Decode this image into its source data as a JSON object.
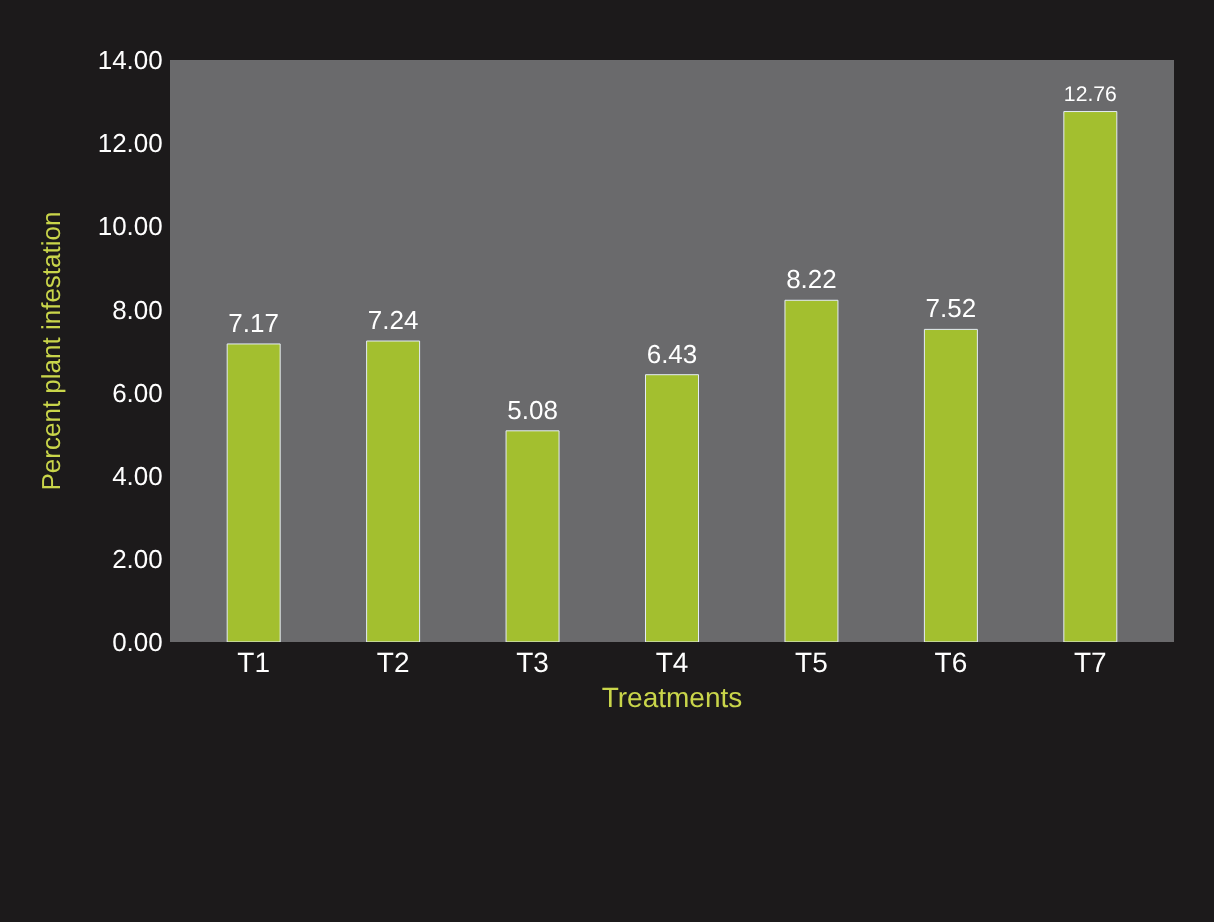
{
  "chart_data": {
    "type": "bar",
    "xlabel": "Treatments",
    "ylabel": "Percent plant infestation",
    "categories": [
      "T1",
      "T2",
      "T3",
      "T4",
      "T5",
      "T6",
      "T7"
    ],
    "values": [
      7.17,
      7.24,
      5.08,
      6.43,
      8.22,
      7.52,
      12.76
    ],
    "color": "#a3bf2f",
    "ylim": [
      0,
      14
    ],
    "yticks": [
      {
        "value": 0,
        "label": "0.00"
      },
      {
        "value": 2,
        "label": "2.00"
      },
      {
        "value": 4,
        "label": "4.00"
      },
      {
        "value": 6,
        "label": "6.00"
      },
      {
        "value": 8,
        "label": "8.00"
      },
      {
        "value": 10,
        "label": "10.00"
      },
      {
        "value": 12,
        "label": "12.00"
      },
      {
        "value": 14,
        "label": "14.00"
      }
    ],
    "data_labels": true,
    "grid": false,
    "legend": false
  }
}
